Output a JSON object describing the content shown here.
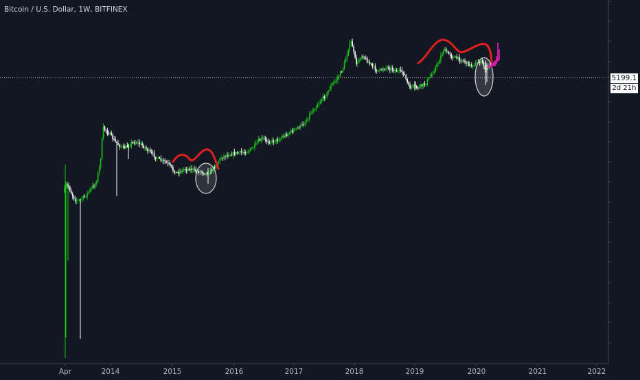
{
  "chart_data": {
    "type": "candlestick",
    "title": "Bitcoin / U.S. Dollar, 1W, BITFINEX",
    "x_tick_labels": [
      "Apr",
      "2014",
      "2015",
      "2016",
      "2017",
      "2018",
      "2019",
      "2020",
      "2021",
      "2022"
    ],
    "y_scale": "log",
    "y_tick_labels_shown": false,
    "last_price": "5199.1",
    "countdown": "2d 21h",
    "price_line": "dotted-horizontal-white",
    "colors": {
      "background": "#131722",
      "up_candle": "#18c618",
      "down_candle": "#ffffff",
      "hump_curve": "#e0201f",
      "projection": "#e01fb4",
      "ellipse": "#d8d8d8"
    },
    "annotations": [
      {
        "type": "curve",
        "color": "red",
        "period": "2015",
        "shape": "double-hump"
      },
      {
        "type": "ellipse",
        "period": "2015-Q3",
        "note": "wick low circled"
      },
      {
        "type": "curve",
        "color": "red",
        "period": "2019-2020",
        "shape": "double-hump"
      },
      {
        "type": "ellipse",
        "period": "2020-Q1",
        "note": "wick low circled"
      },
      {
        "type": "projected-bars",
        "color": "magenta",
        "period": "2020-Q2"
      }
    ]
  }
}
